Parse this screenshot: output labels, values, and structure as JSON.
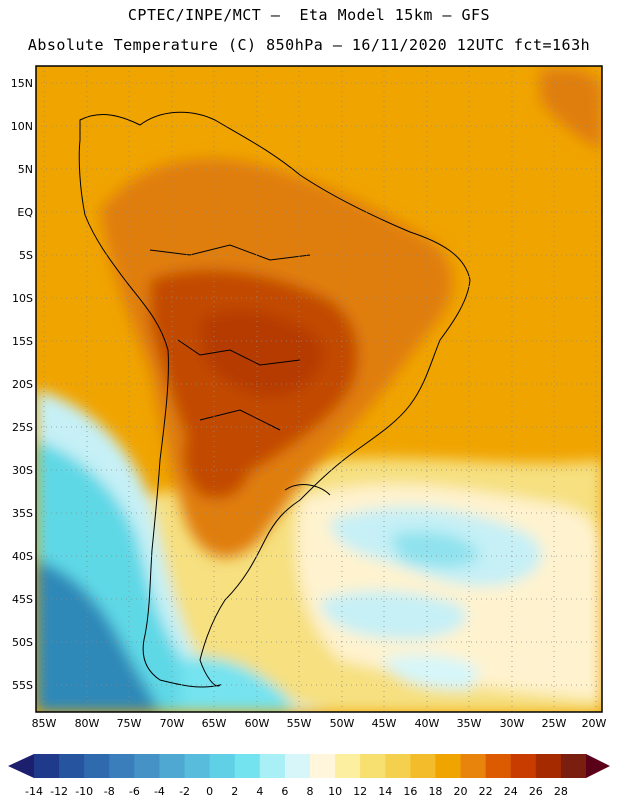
{
  "header": {
    "line1": "CPTEC/INPE/MCT —  Eta Model 15km — GFS",
    "line2": "Absolute Temperature (C) 850hPa — 16/11/2020 12UTC fct=163h"
  },
  "map": {
    "lat_labels": [
      "15N",
      "10N",
      "5N",
      "EQ",
      "5S",
      "10S",
      "15S",
      "20S",
      "25S",
      "30S",
      "35S",
      "40S",
      "45S",
      "50S",
      "55S"
    ],
    "lon_labels": [
      "85W",
      "80W",
      "75W",
      "70W",
      "65W",
      "60W",
      "55W",
      "50W",
      "45W",
      "40W",
      "35W",
      "30W",
      "25W",
      "20W"
    ],
    "field_colors": {
      "ocean_north": "#f0a400",
      "warm_core": "#c24a00",
      "hot_core": "#b53a00",
      "mid": "#e07e10",
      "yellow": "#f6e080",
      "cream": "#fff3cf",
      "cold_light": "#c6f0f6",
      "cold_cyan": "#5fd8e6",
      "cold_deep": "#2e88b8"
    }
  },
  "colorbar": {
    "labels": [
      "-14",
      "-12",
      "-10",
      "-8",
      "-6",
      "-4",
      "-2",
      "0",
      "2",
      "4",
      "6",
      "8",
      "10",
      "12",
      "14",
      "16",
      "18",
      "20",
      "22",
      "24",
      "26",
      "28"
    ],
    "colors": [
      "#1f3a8a",
      "#26549e",
      "#2f6aaf",
      "#3a7fbc",
      "#4593c6",
      "#4ea8d2",
      "#58bcdc",
      "#5fd0e6",
      "#74e3f0",
      "#a8f0f6",
      "#d6f6fa",
      "#fff6dc",
      "#fdefa0",
      "#f8e070",
      "#f5d04e",
      "#f2bc2a",
      "#f0a400",
      "#e8840c",
      "#dc5a00",
      "#c83c00",
      "#a52a00",
      "#7a1e10"
    ],
    "low_arrow": "#1c1e6e",
    "high_arrow": "#5a0018"
  }
}
